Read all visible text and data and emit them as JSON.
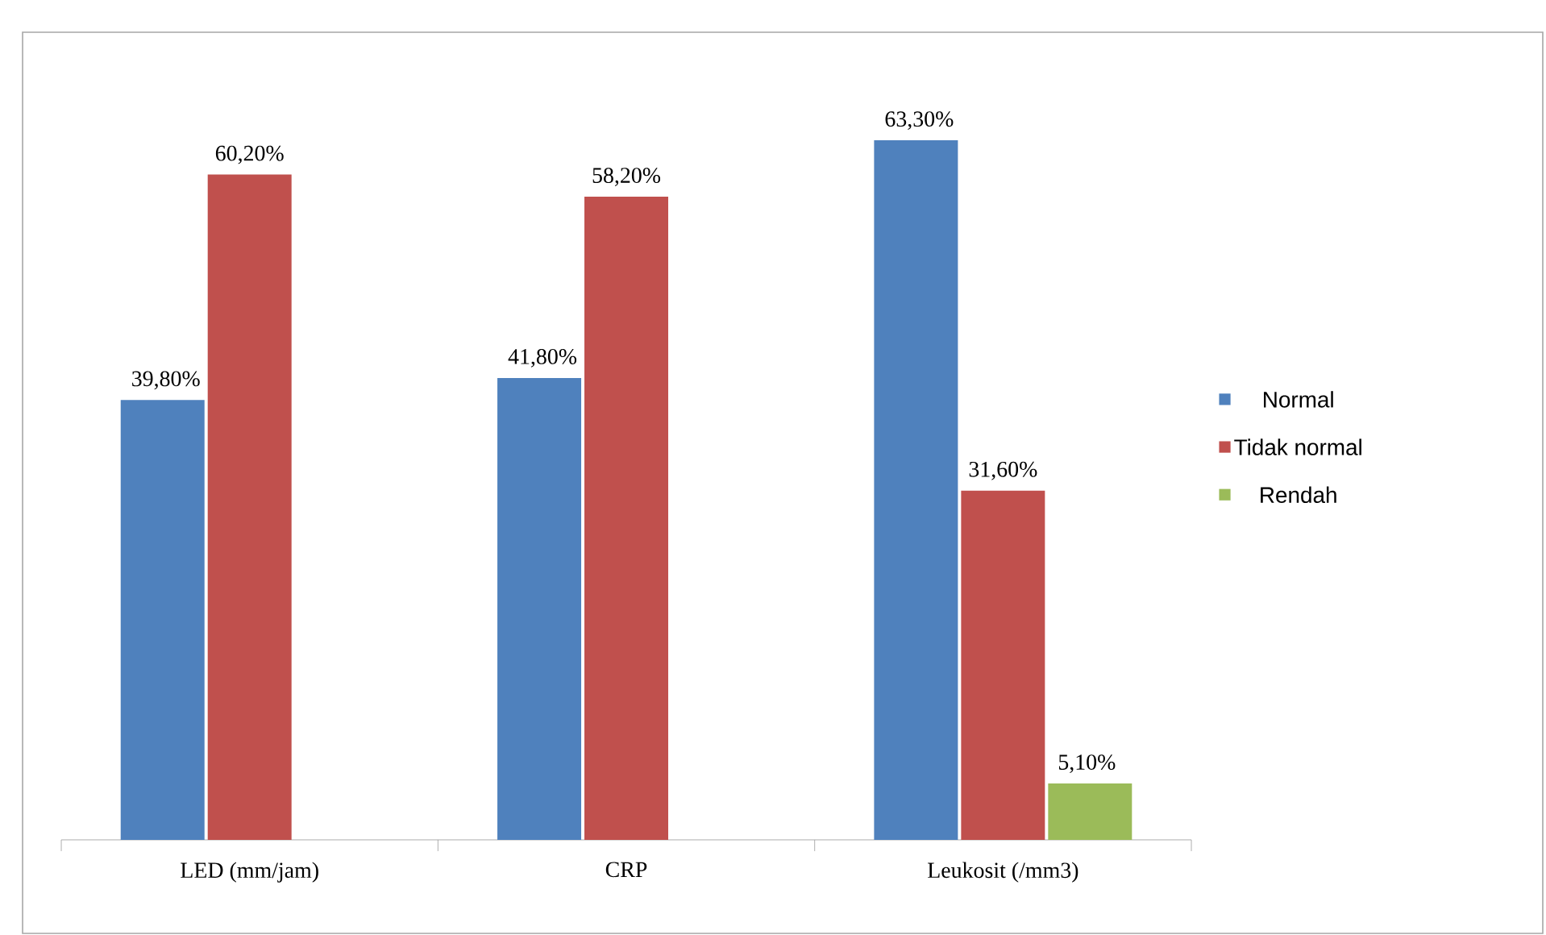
{
  "chart_data": {
    "type": "bar",
    "categories": [
      "LED (mm/jam)",
      "CRP",
      "Leukosit (/mm3)"
    ],
    "series": [
      {
        "name": "Normal",
        "color": "#4f81bd",
        "values": [
          39.8,
          41.8,
          63.3
        ],
        "value_labels": [
          "39,80%",
          "41,80%",
          "63,30%"
        ]
      },
      {
        "name": "Tidak normal",
        "color": "#c0504d",
        "values": [
          60.2,
          58.2,
          31.6
        ],
        "value_labels": [
          "60,20%",
          "58,20%",
          "31,60%"
        ]
      },
      {
        "name": "Rendah",
        "color": "#9bbb59",
        "values": [
          null,
          null,
          5.1
        ],
        "value_labels": [
          null,
          null,
          "5,10%"
        ]
      }
    ],
    "legend": "right"
  }
}
